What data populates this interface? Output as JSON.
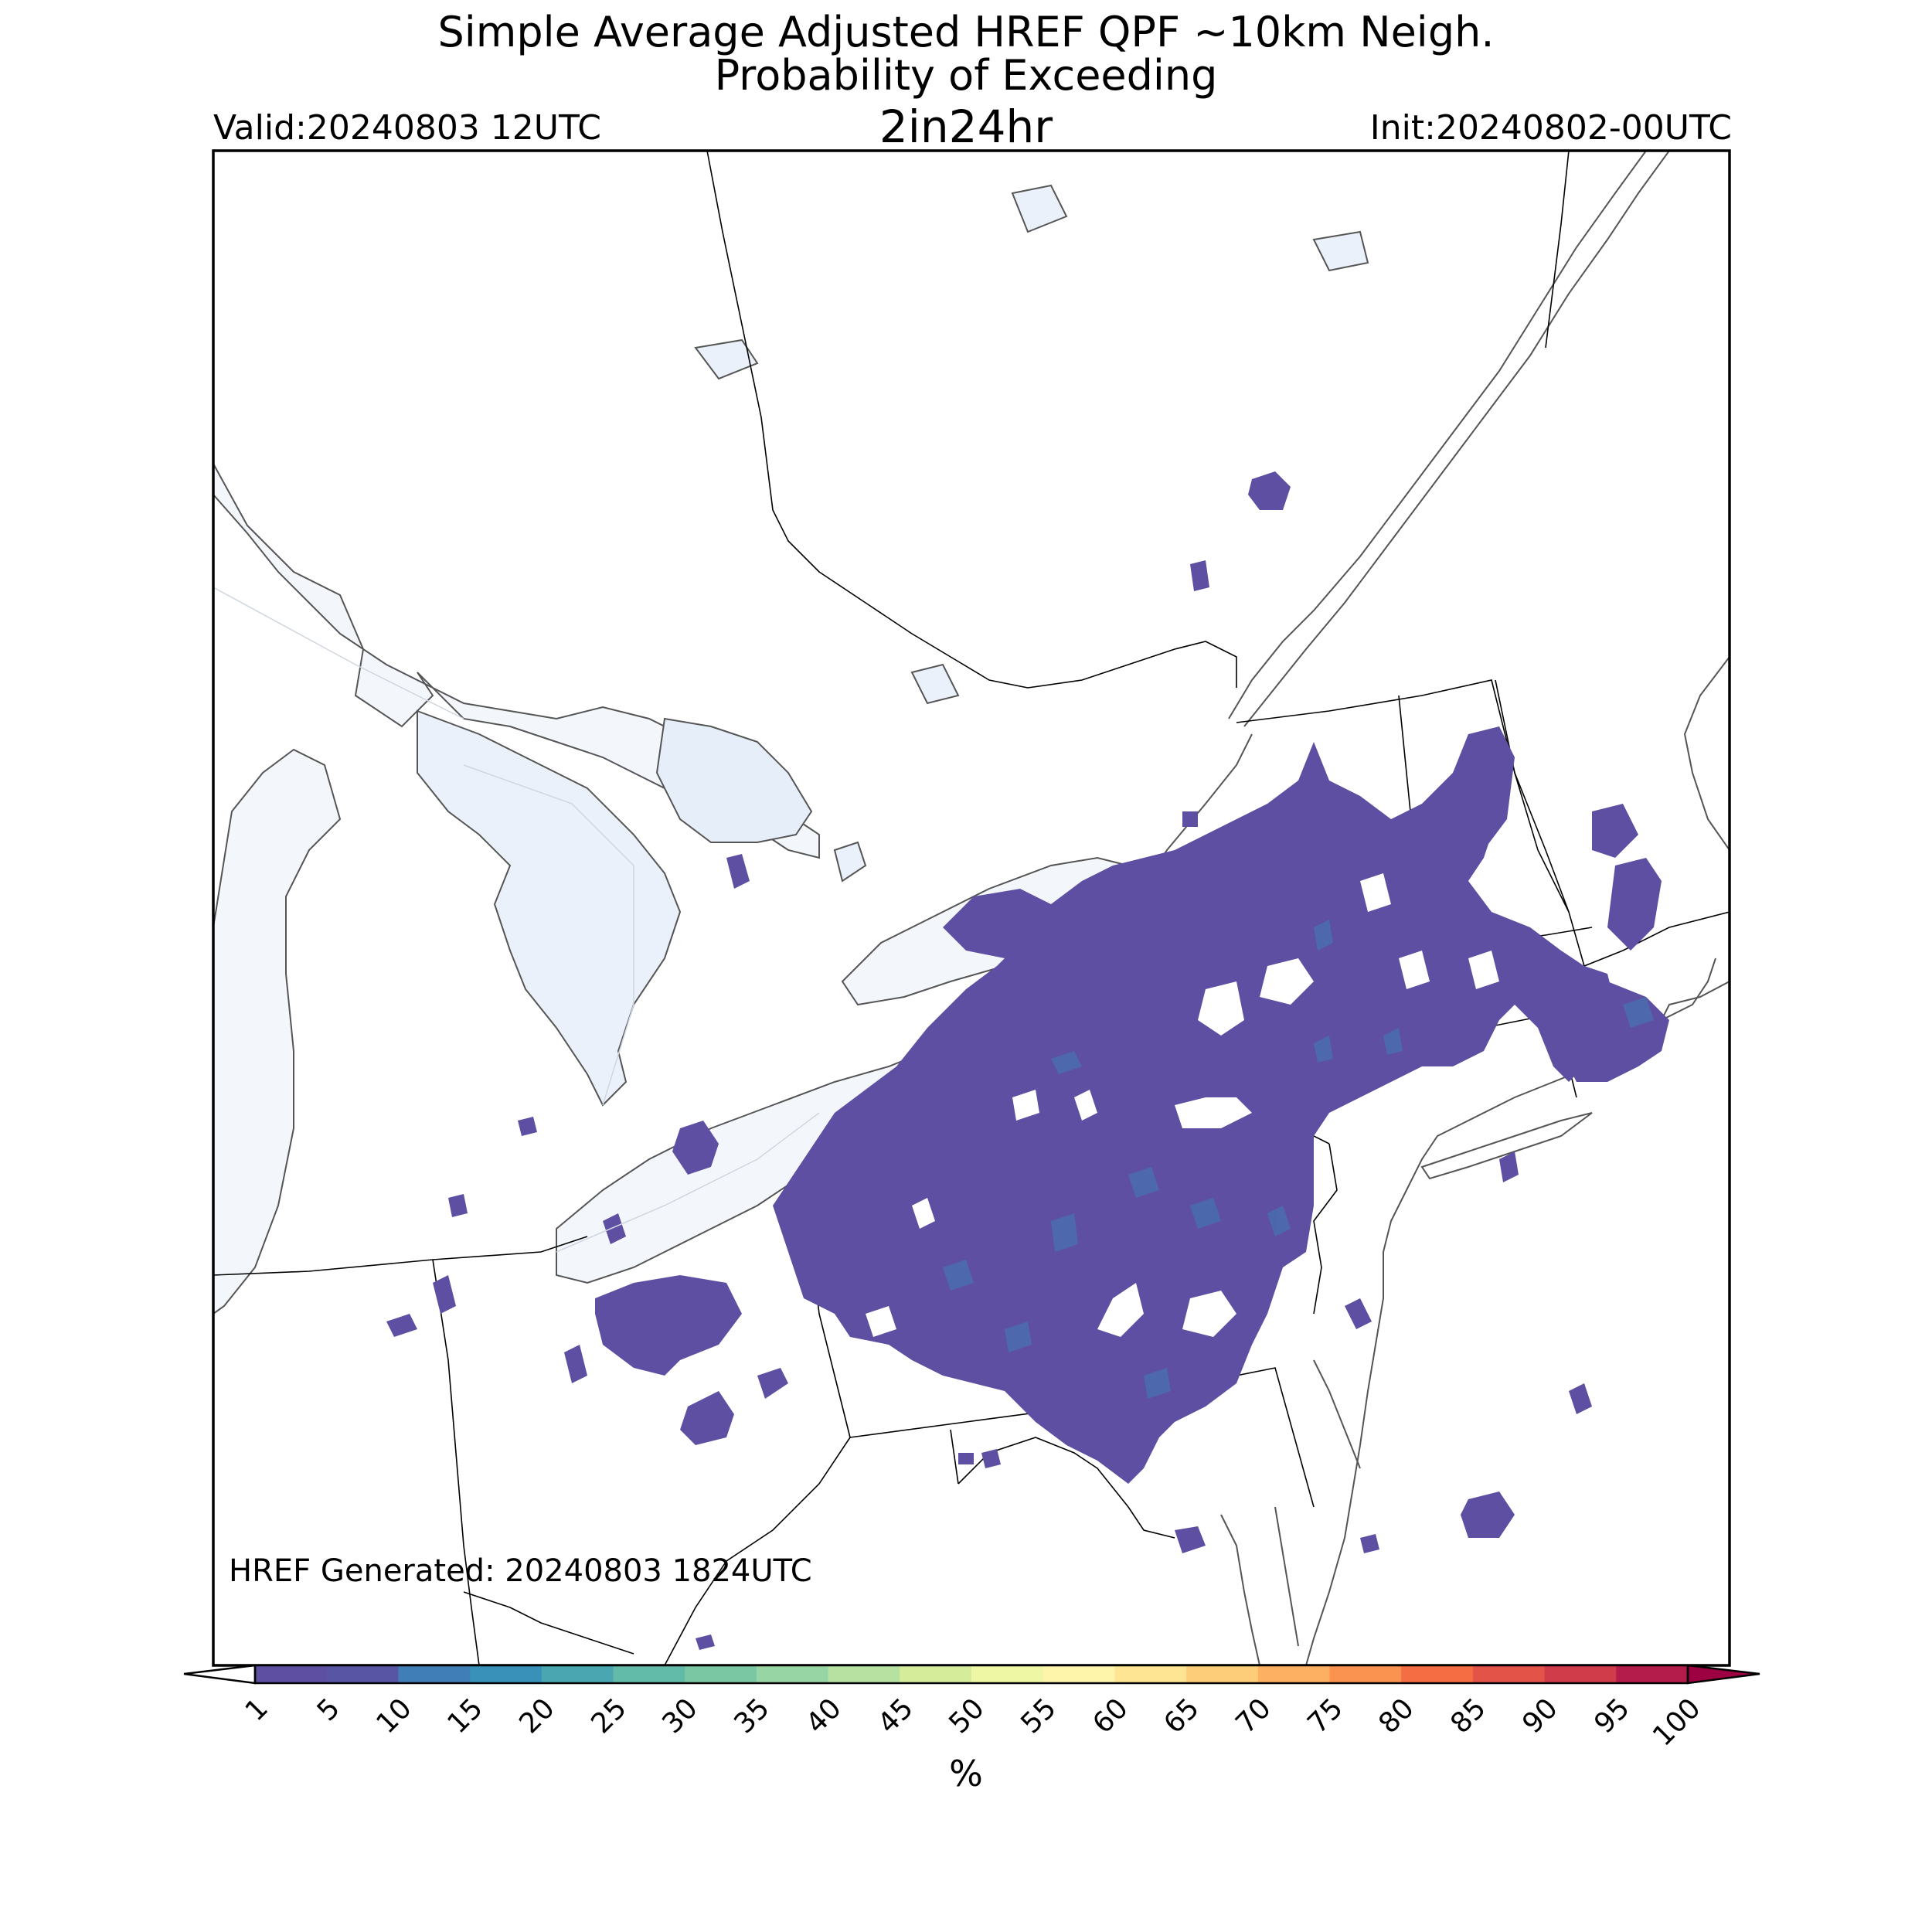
{
  "header": {
    "title_line1": "Simple Average Adjusted HREF QPF ~10km Neigh.",
    "title_line2": "Probability of Exceeding",
    "title_line3": "2in24hr",
    "valid": "Valid:20240803 12UTC",
    "init": "Init:20240802-00UTC"
  },
  "annotation": {
    "generated": "HREF Generated: 20240803 1824UTC"
  },
  "colorbar": {
    "unit": "%",
    "ticks": [
      "1",
      "5",
      "10",
      "15",
      "20",
      "25",
      "30",
      "35",
      "40",
      "45",
      "50",
      "55",
      "60",
      "65",
      "70",
      "75",
      "80",
      "85",
      "90",
      "95",
      "100"
    ],
    "colors": [
      "#5e4fa2",
      "#5855a5",
      "#3f7eb6",
      "#3990b9",
      "#4aa7b1",
      "#62bba8",
      "#79c8a3",
      "#98d5a4",
      "#b7e1a1",
      "#d5ed9b",
      "#eef7a3",
      "#fef5aa",
      "#fee593",
      "#fdcd79",
      "#fdb062",
      "#fa9250",
      "#f46d43",
      "#e35347",
      "#d13c4b",
      "#b31c4b",
      "#9e0142"
    ],
    "under_color": "#ffffff",
    "over_color": "#9e0142"
  },
  "map": {
    "region": "Northeastern United States and southern Quebec/Ontario",
    "colors": {
      "land": "#ffffff",
      "lake": "#eef3fa",
      "border": "#000000",
      "coast": "#555555",
      "prob_1_10": "#5e4fa2",
      "prob_10_20": "#3f7eb6"
    }
  }
}
